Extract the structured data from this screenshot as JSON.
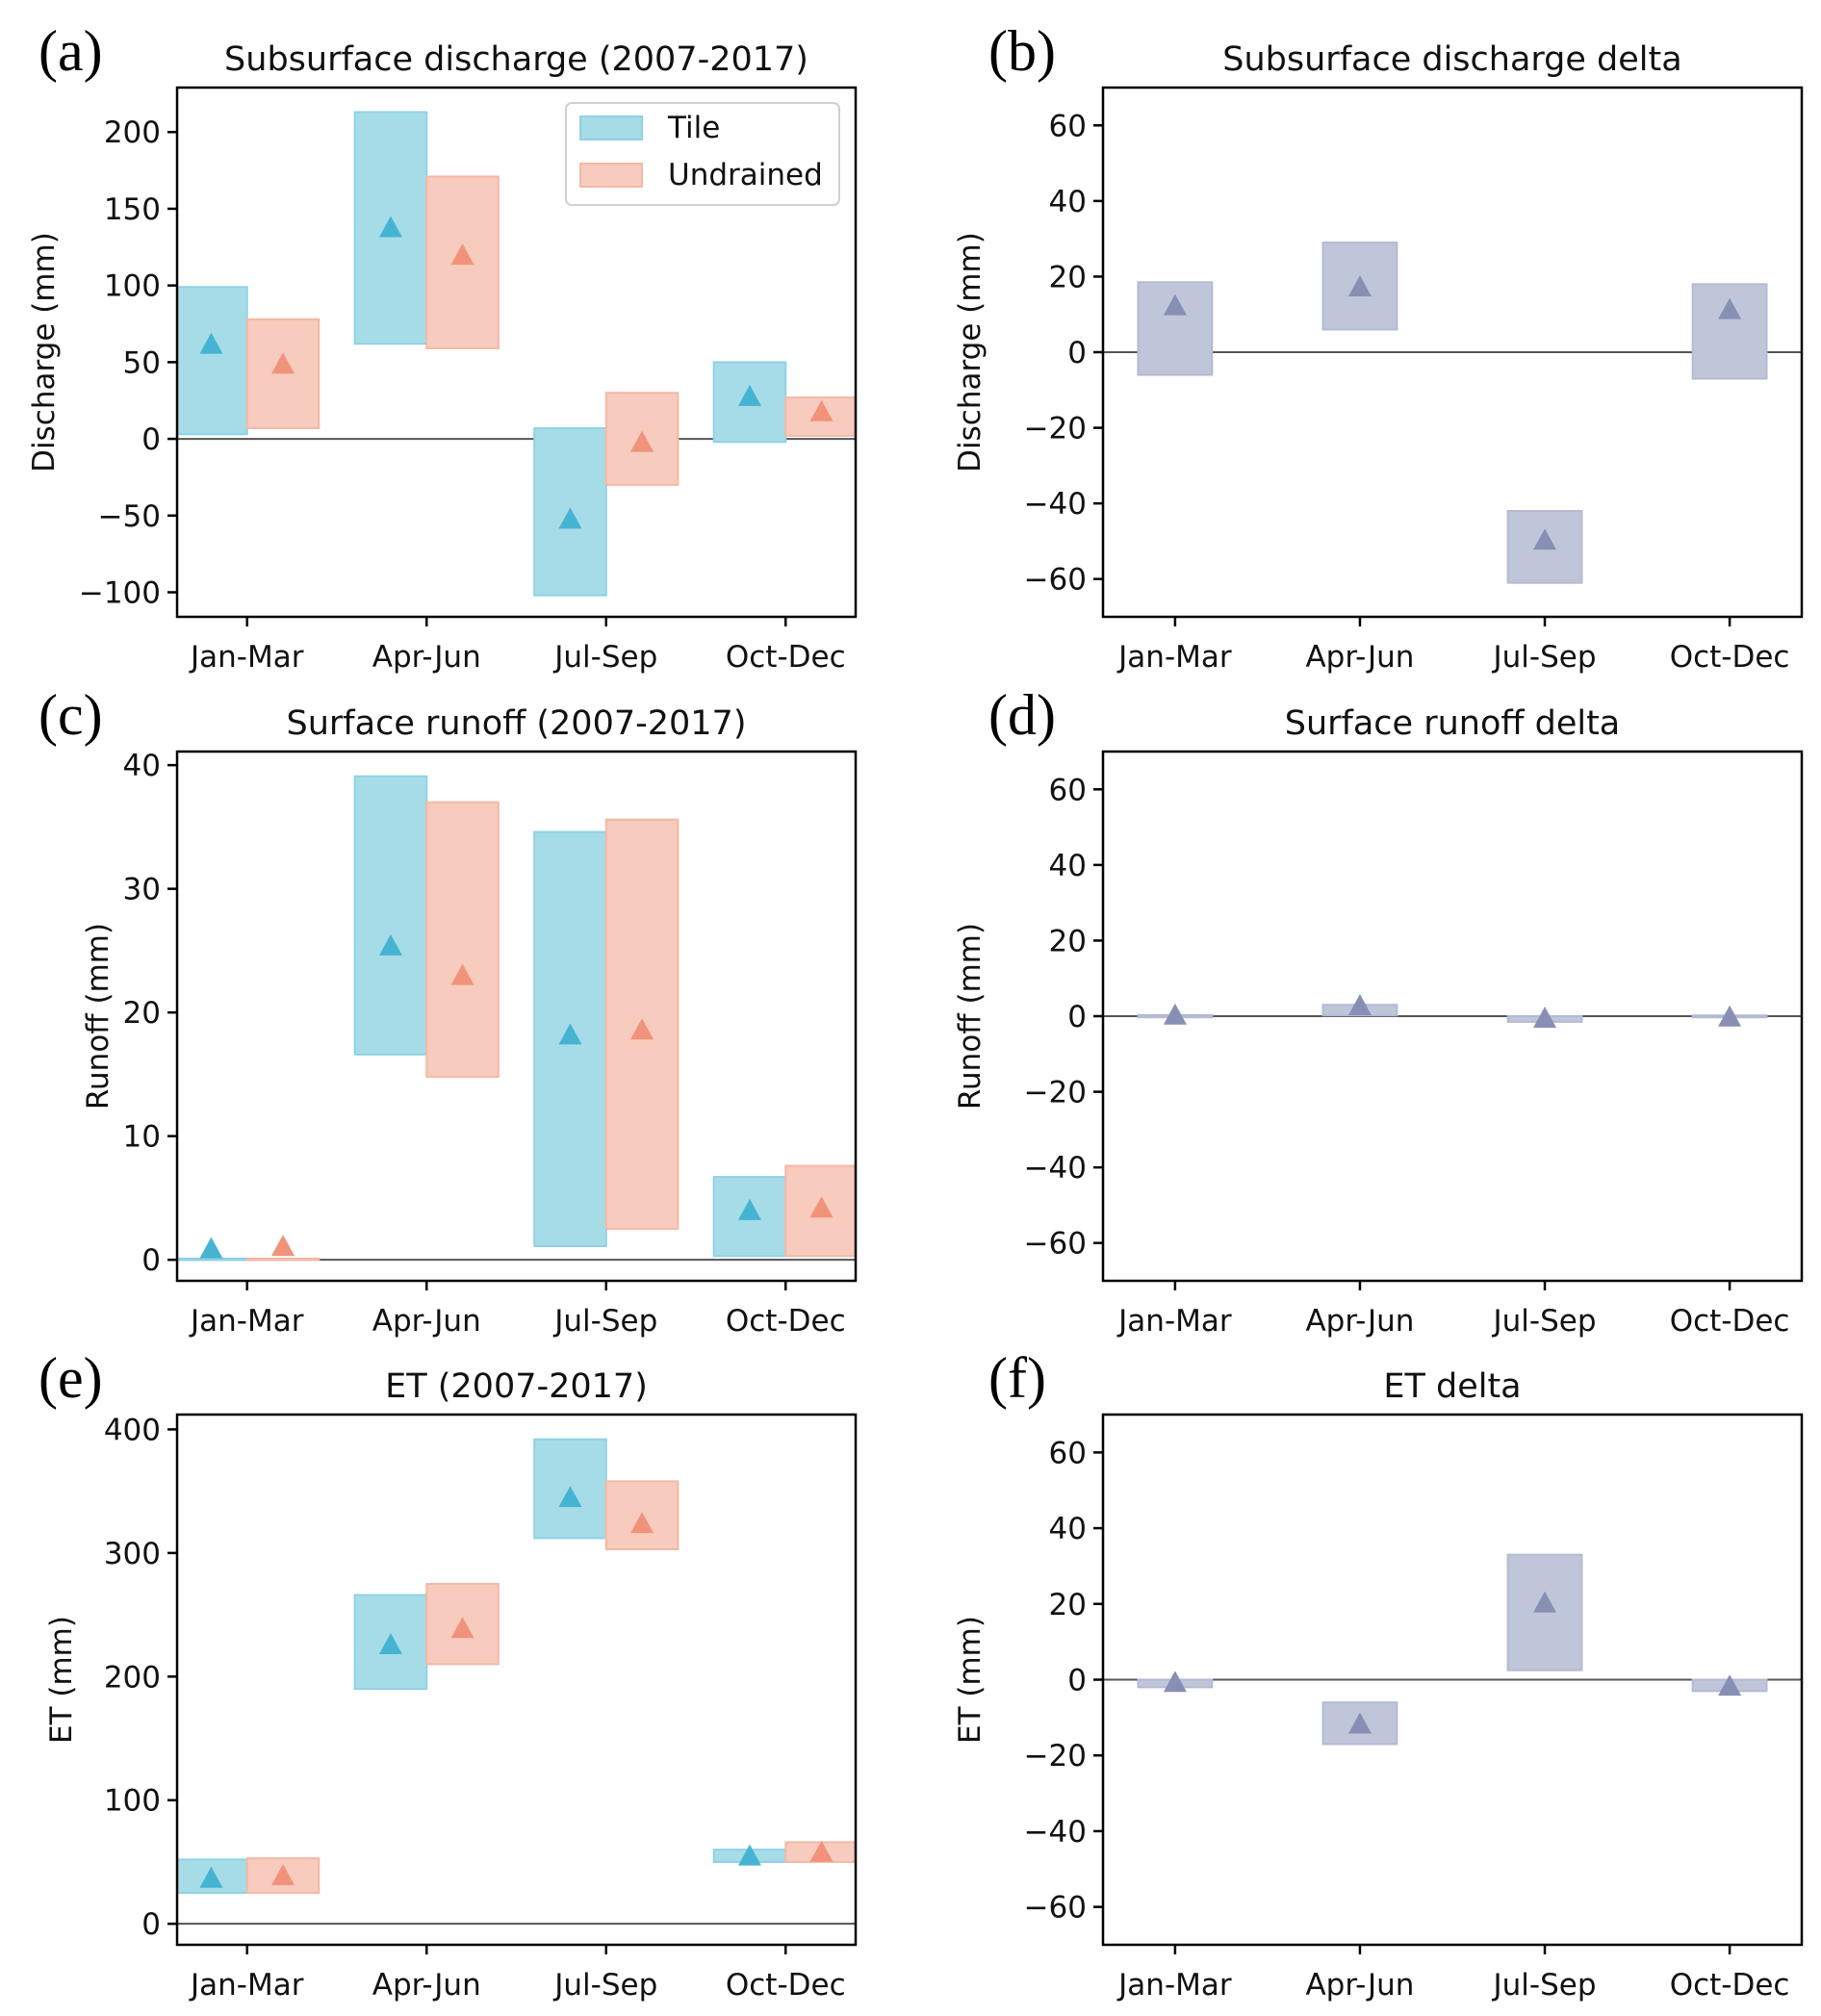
{
  "colors": {
    "tile_fill": "#a6dce8",
    "tile_edge": "#8fd2e5",
    "tile_marker": "#45b4d2",
    "undrained_fill": "#f7cbbd",
    "undrained_edge": "#f3b9a6",
    "undrained_marker": "#f0937a",
    "delta_fill": "#c0c6da",
    "delta_edge": "#b3bad2",
    "delta_marker": "#8790b4",
    "axis": "#000000",
    "zero_line": "#555555"
  },
  "legend": {
    "entries": [
      "Tile",
      "Undrained"
    ],
    "placement": "top-right",
    "panel": "a"
  },
  "chart_data": [
    {
      "id": "a",
      "letter": "(a)",
      "type": "range-bar",
      "title": "Subsurface discharge (2007-2017)",
      "xlabel": "",
      "ylabel": "Discharge (mm)",
      "categories": [
        "Jan-Mar",
        "Apr-Jun",
        "Jul-Sep",
        "Oct-Dec"
      ],
      "ylim": [
        -116,
        229
      ],
      "yticks": [
        -100,
        -50,
        0,
        50,
        100,
        150,
        200
      ],
      "ytick_labels": [
        "−100",
        "−50",
        "0",
        "50",
        "100",
        "150",
        "200"
      ],
      "grid": false,
      "zero_line": true,
      "series": [
        {
          "name": "Tile",
          "low": [
            3,
            62,
            -102,
            -2
          ],
          "high": [
            99,
            213,
            7,
            50
          ],
          "mean": [
            61,
            137,
            -53,
            27
          ]
        },
        {
          "name": "Undrained",
          "low": [
            7,
            59,
            -30,
            2
          ],
          "high": [
            78,
            171,
            30,
            27
          ],
          "mean": [
            48,
            119,
            -3,
            17
          ]
        }
      ]
    },
    {
      "id": "b",
      "letter": "(b)",
      "type": "range-bar",
      "title": "Subsurface discharge delta",
      "xlabel": "",
      "ylabel": "Discharge (mm)",
      "categories": [
        "Jan-Mar",
        "Apr-Jun",
        "Jul-Sep",
        "Oct-Dec"
      ],
      "ylim": [
        -70,
        70
      ],
      "yticks": [
        -60,
        -40,
        -20,
        0,
        20,
        40,
        60
      ],
      "ytick_labels": [
        "−60",
        "−40",
        "−20",
        "0",
        "20",
        "40",
        "60"
      ],
      "grid": false,
      "zero_line": true,
      "series": [
        {
          "name": "Delta",
          "low": [
            -6,
            6,
            -61,
            -7
          ],
          "high": [
            18.5,
            29,
            -42,
            18
          ],
          "mean": [
            12,
            17,
            -50,
            11
          ]
        }
      ]
    },
    {
      "id": "c",
      "letter": "(c)",
      "type": "range-bar",
      "title": "Surface runoff (2007-2017)",
      "xlabel": "",
      "ylabel": "Runoff (mm)",
      "categories": [
        "Jan-Mar",
        "Apr-Jun",
        "Jul-Sep",
        "Oct-Dec"
      ],
      "ylim": [
        -1.7,
        41.1
      ],
      "yticks": [
        0,
        10,
        20,
        30,
        40
      ],
      "ytick_labels": [
        "0",
        "10",
        "20",
        "30",
        "40"
      ],
      "grid": false,
      "zero_line": true,
      "series": [
        {
          "name": "Tile",
          "low": [
            0,
            16.6,
            1.1,
            0.3
          ],
          "high": [
            0.1,
            39.1,
            34.6,
            6.7
          ],
          "mean": [
            0.8,
            25.3,
            18.1,
            3.9
          ]
        },
        {
          "name": "Undrained",
          "low": [
            0,
            14.8,
            2.5,
            0.3
          ],
          "high": [
            0.1,
            37.0,
            35.6,
            7.6
          ],
          "mean": [
            1.0,
            22.9,
            18.5,
            4.1
          ]
        }
      ]
    },
    {
      "id": "d",
      "letter": "(d)",
      "type": "range-bar",
      "title": "Surface runoff delta",
      "xlabel": "",
      "ylabel": "Runoff (mm)",
      "categories": [
        "Jan-Mar",
        "Apr-Jun",
        "Jul-Sep",
        "Oct-Dec"
      ],
      "ylim": [
        -70,
        70
      ],
      "yticks": [
        -60,
        -40,
        -20,
        0,
        20,
        40,
        60
      ],
      "ytick_labels": [
        "−60",
        "−40",
        "−20",
        "0",
        "20",
        "40",
        "60"
      ],
      "grid": false,
      "zero_line": true,
      "series": [
        {
          "name": "Delta",
          "low": [
            -0.3,
            0.2,
            -1.5,
            -0.3
          ],
          "high": [
            0.3,
            3,
            0,
            0.2
          ],
          "mean": [
            0,
            2.5,
            -0.8,
            -0.5
          ]
        }
      ]
    },
    {
      "id": "e",
      "letter": "(e)",
      "type": "range-bar",
      "title": "ET (2007-2017)",
      "xlabel": "",
      "ylabel": "ET (mm)",
      "categories": [
        "Jan-Mar",
        "Apr-Jun",
        "Jul-Sep",
        "Oct-Dec"
      ],
      "ylim": [
        -17,
        412
      ],
      "yticks": [
        0,
        100,
        200,
        300,
        400
      ],
      "ytick_labels": [
        "0",
        "100",
        "200",
        "300",
        "400"
      ],
      "grid": false,
      "zero_line": true,
      "series": [
        {
          "name": "Tile",
          "low": [
            25,
            190,
            312,
            50
          ],
          "high": [
            52,
            266,
            392,
            60
          ],
          "mean": [
            36,
            225,
            344,
            54
          ]
        },
        {
          "name": "Undrained",
          "low": [
            25,
            210,
            303,
            50
          ],
          "high": [
            53,
            275,
            358,
            66
          ],
          "mean": [
            38,
            238,
            323,
            57
          ]
        }
      ]
    },
    {
      "id": "f",
      "letter": "(f)",
      "type": "range-bar",
      "title": "ET delta",
      "xlabel": "",
      "ylabel": "ET (mm)",
      "categories": [
        "Jan-Mar",
        "Apr-Jun",
        "Jul-Sep",
        "Oct-Dec"
      ],
      "ylim": [
        -70,
        70
      ],
      "yticks": [
        -60,
        -40,
        -20,
        0,
        20,
        40,
        60
      ],
      "ytick_labels": [
        "−60",
        "−40",
        "−20",
        "0",
        "20",
        "40",
        "60"
      ],
      "grid": false,
      "zero_line": true,
      "series": [
        {
          "name": "Delta",
          "low": [
            -2,
            -17,
            2.5,
            -3
          ],
          "high": [
            0,
            -6,
            33,
            0
          ],
          "mean": [
            -1,
            -12,
            20,
            -2
          ]
        }
      ]
    }
  ]
}
